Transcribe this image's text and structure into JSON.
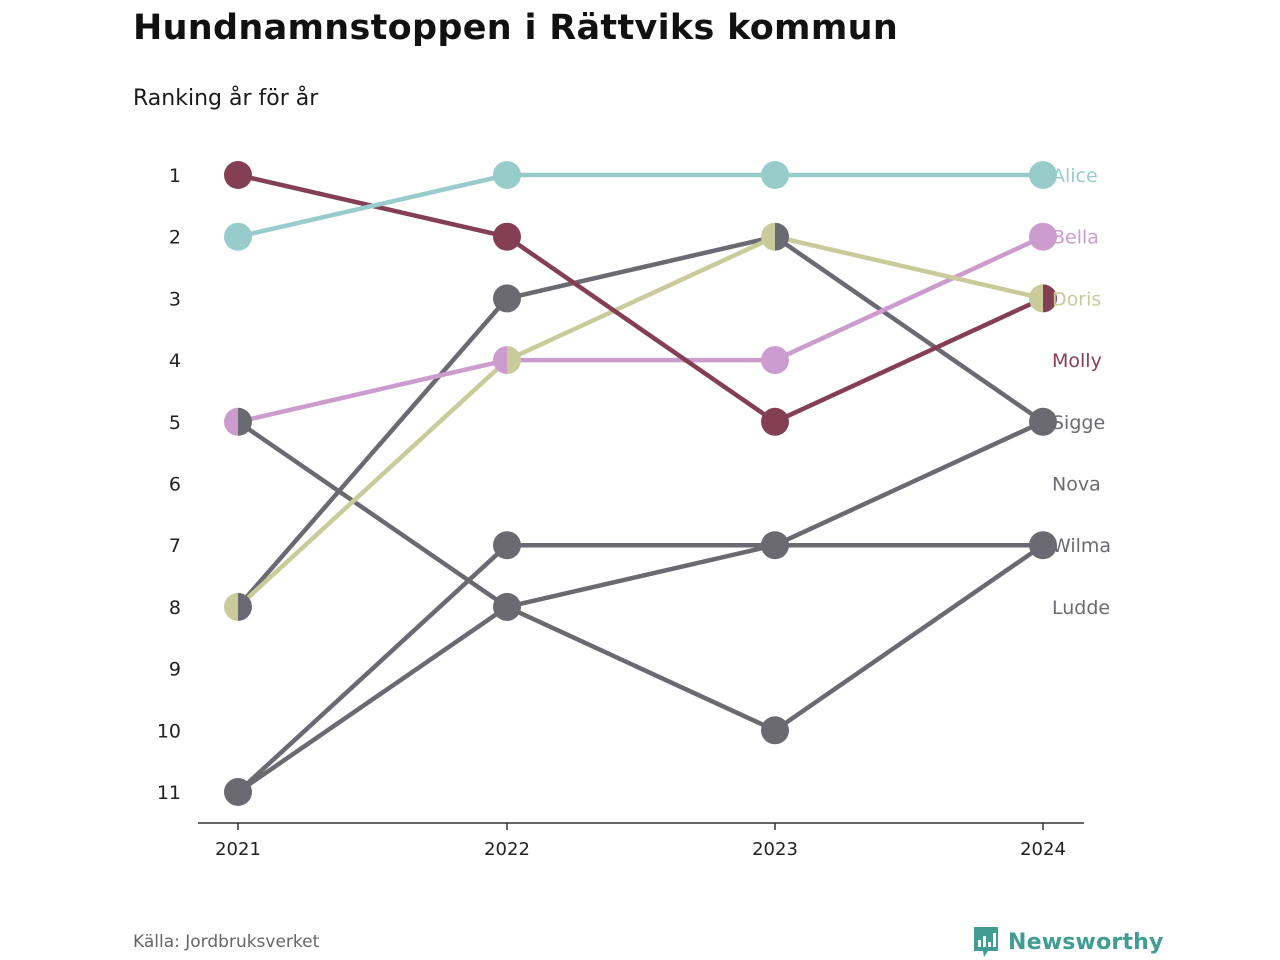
{
  "chart_data": {
    "type": "line",
    "title": "Hundnamnstoppen i Rättviks kommun",
    "subtitle": "Ranking år för år",
    "x": [
      "2021",
      "2022",
      "2023",
      "2024"
    ],
    "y_ticks": [
      "1",
      "2",
      "3",
      "4",
      "5",
      "6",
      "7",
      "8",
      "9",
      "10",
      "11"
    ],
    "ylim": [
      1,
      11
    ],
    "y_inverted": true,
    "grid": false,
    "series": [
      {
        "name": "Sigge",
        "color": "#6b6a72",
        "ranks": [
          5,
          8,
          10,
          7
        ]
      },
      {
        "name": "Nova",
        "color": "#6b6a72",
        "ranks": [
          8,
          3,
          2,
          5
        ]
      },
      {
        "name": "Wilma",
        "color": "#6b6a72",
        "ranks": [
          11,
          7,
          7,
          7
        ]
      },
      {
        "name": "Ludde",
        "color": "#6b6a72",
        "ranks": [
          11,
          8,
          7,
          5
        ]
      },
      {
        "name": "Bella",
        "color": "#cc9ccf",
        "ranks": [
          5,
          4,
          4,
          2
        ]
      },
      {
        "name": "Doris",
        "color": "#cacb9a",
        "ranks": [
          8,
          4,
          2,
          3
        ]
      },
      {
        "name": "Molly",
        "color": "#843f55",
        "ranks": [
          1,
          2,
          5,
          3
        ]
      },
      {
        "name": "Alice",
        "color": "#97cccb",
        "ranks": [
          2,
          1,
          1,
          1
        ]
      }
    ],
    "labels_order": [
      "Alice",
      "Bella",
      "Doris",
      "Molly",
      "Sigge",
      "Nova",
      "Wilma",
      "Ludde"
    ]
  },
  "source": "Källa: Jordbruksverket",
  "brand": "Newsworthy",
  "brand_color": "#3f9d93"
}
